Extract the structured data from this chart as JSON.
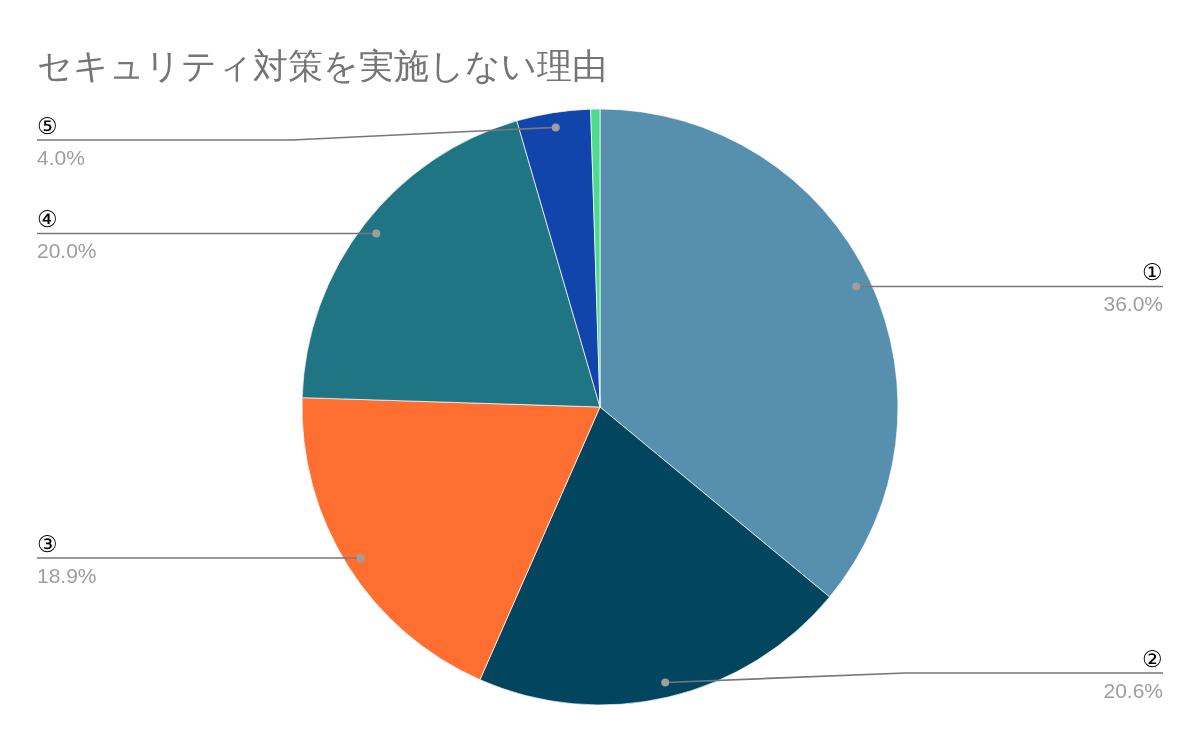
{
  "chart_data": {
    "type": "pie",
    "title": "セキュリティ対策を実施しない理由",
    "categories": [
      "①",
      "②",
      "③",
      "④",
      "⑤",
      null
    ],
    "values": [
      36.0,
      20.6,
      18.9,
      20.0,
      4.0,
      0.5
    ],
    "colors": [
      "#5790ae",
      "#02455f",
      "#ff6f31",
      "#1f7584",
      "#1245ab",
      "#4fdb8c"
    ],
    "value_labels": [
      "36.0%",
      "20.6%",
      "18.9%",
      "20.0%",
      "4.0%",
      null
    ]
  }
}
